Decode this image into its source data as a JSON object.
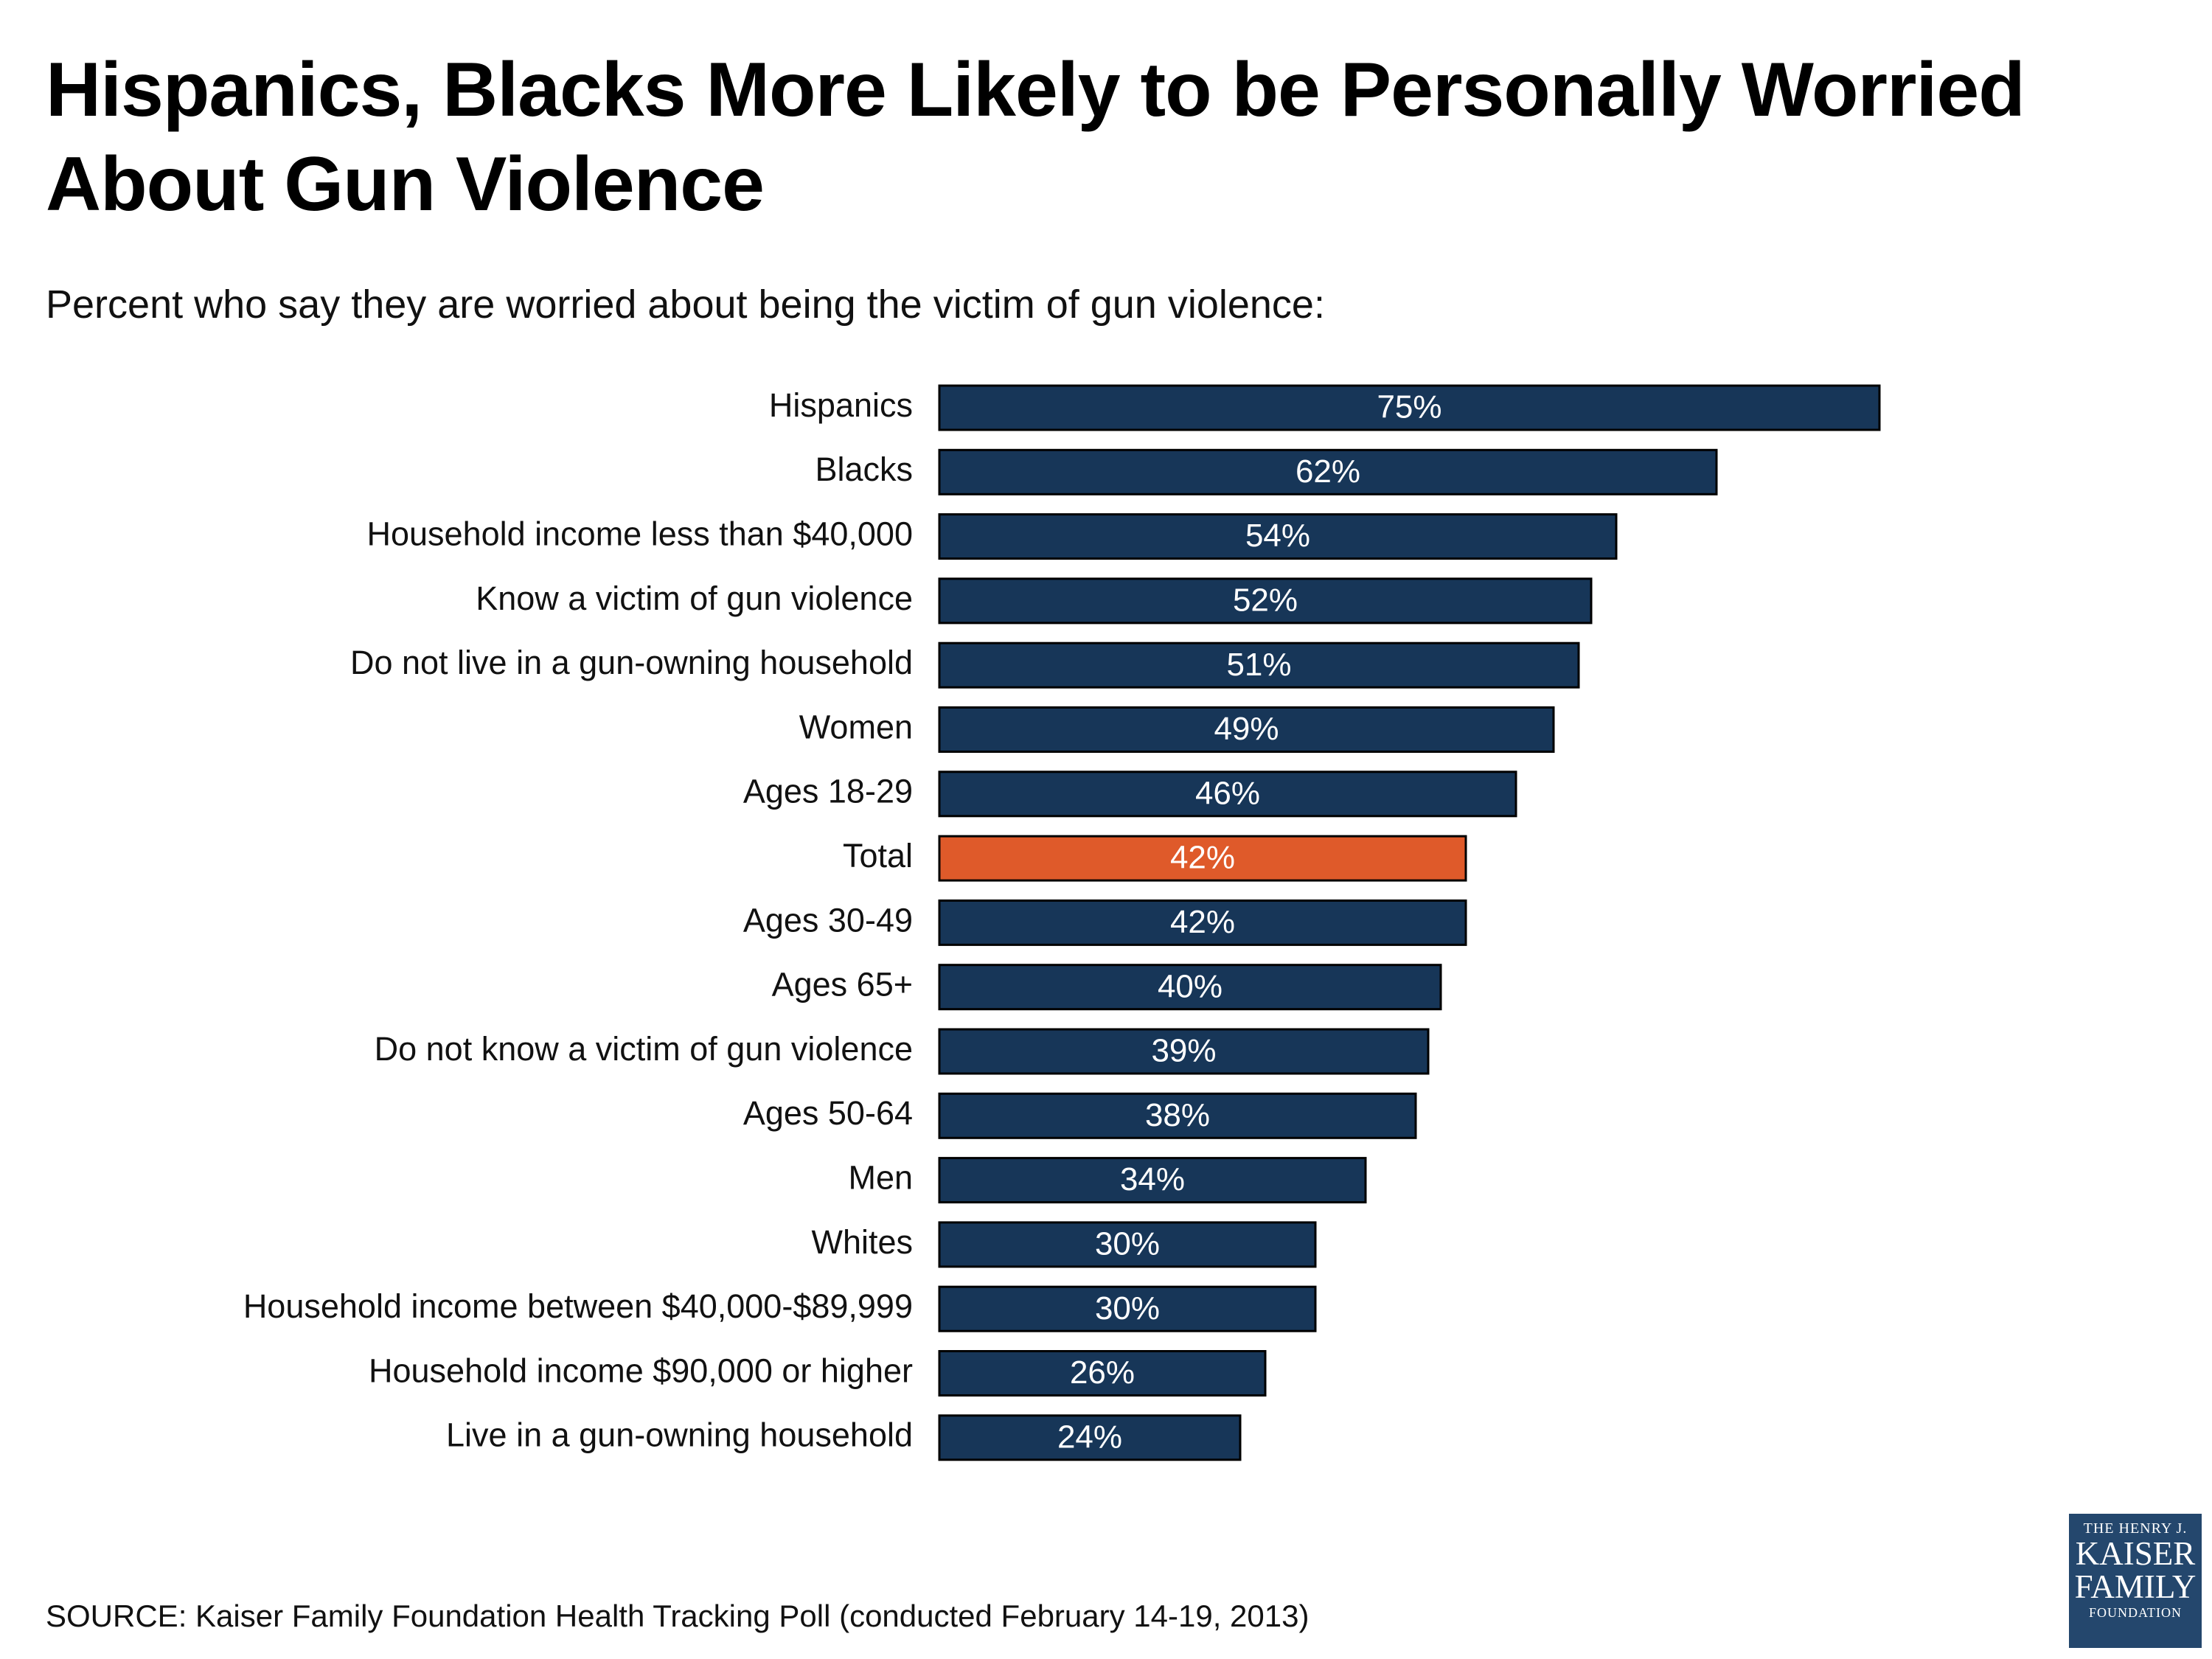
{
  "header": {
    "title": "Hispanics, Blacks More Likely to be Personally Worried About Gun Violence",
    "subtitle": "Percent who say they are worried about being the victim of gun violence:"
  },
  "colors": {
    "bar_default": "#173658",
    "bar_highlight": "#df5a2a",
    "logo_background": "#24476d"
  },
  "chart_data": {
    "type": "bar",
    "orientation": "horizontal",
    "title": "Hispanics, Blacks More Likely to be Personally Worried About Gun Violence",
    "subtitle": "Percent who say they are worried about being the victim of gun violence:",
    "xlabel": "",
    "ylabel": "",
    "unit": "%",
    "xlim": [
      0,
      100
    ],
    "grid": false,
    "legend": "none",
    "highlight_category": "Total",
    "categories": [
      "Hispanics",
      "Blacks",
      "Household income less than $40,000",
      "Know a victim of gun violence",
      "Do not live in a gun-owning household",
      "Women",
      "Ages 18-29",
      "Total",
      "Ages 30-49",
      "Ages 65+",
      "Do not know a victim of gun violence",
      "Ages 50-64",
      "Men",
      "Whites",
      "Household income between $40,000-$89,999",
      "Household income $90,000 or higher",
      "Live in a gun-owning household"
    ],
    "values": [
      75,
      62,
      54,
      52,
      51,
      49,
      46,
      42,
      42,
      40,
      39,
      38,
      34,
      30,
      30,
      26,
      24
    ],
    "data_labels": [
      "75%",
      "62%",
      "54%",
      "52%",
      "51%",
      "49%",
      "46%",
      "42%",
      "42%",
      "40%",
      "39%",
      "38%",
      "34%",
      "30%",
      "30%",
      "26%",
      "24%"
    ]
  },
  "footer": {
    "source": "SOURCE: Kaiser Family Foundation Health Tracking Poll (conducted February 14-19, 2013)"
  },
  "logo": {
    "line1": "THE HENRY J.",
    "line2": "KAISER",
    "line3": "FAMILY",
    "line4": "FOUNDATION"
  }
}
